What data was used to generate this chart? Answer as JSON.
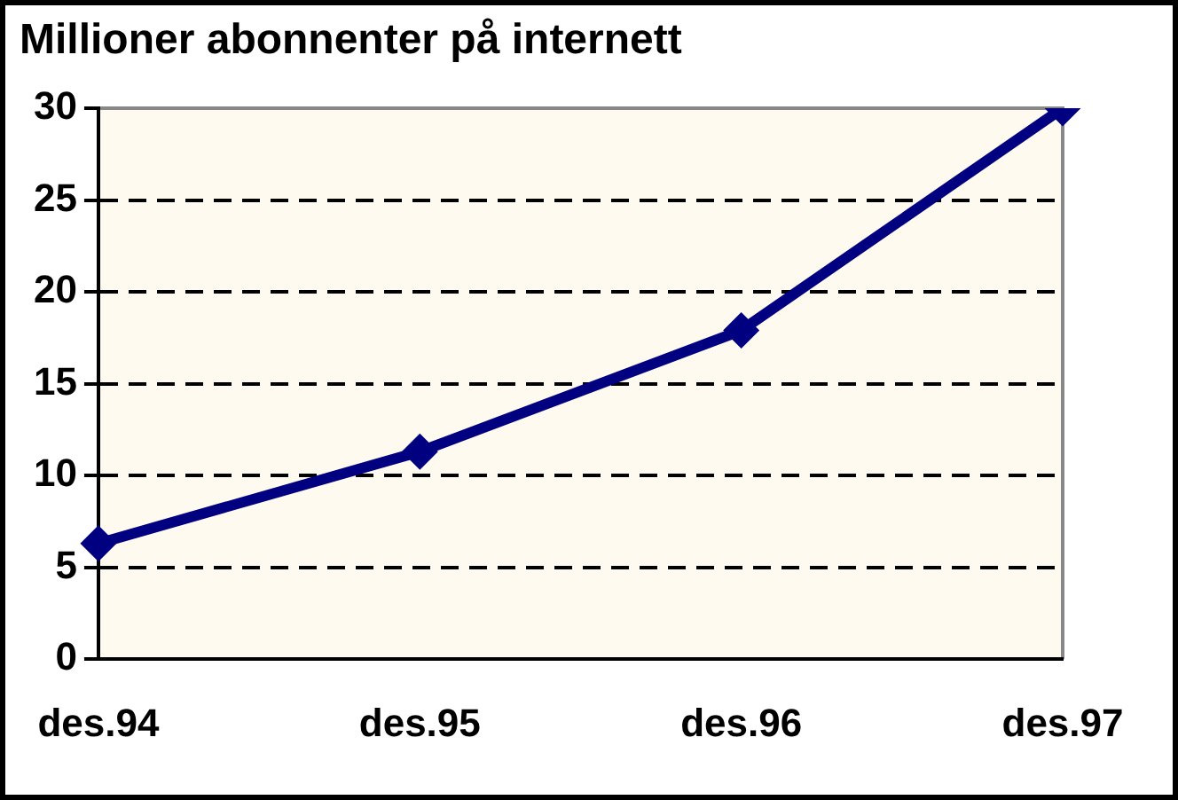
{
  "chart_data": {
    "type": "line",
    "title": "Millioner abonnenter på internett",
    "categories": [
      "des.94",
      "des.95",
      "des.96",
      "des.97"
    ],
    "series": [
      {
        "color": "#000080",
        "values": [
          6.3,
          11.3,
          17.9,
          30
        ]
      }
    ],
    "ylim": [
      0,
      30
    ],
    "yticks": [
      0,
      5,
      10,
      15,
      20,
      25,
      30
    ],
    "grid": "y",
    "marker": "diamond",
    "line_style": "solid",
    "legend": false
  }
}
